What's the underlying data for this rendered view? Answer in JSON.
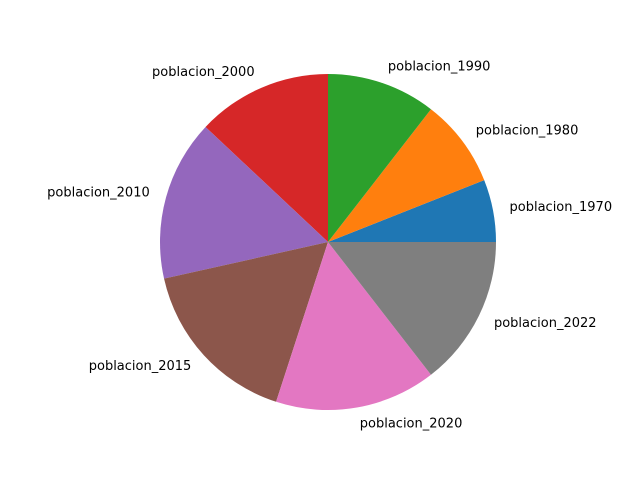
{
  "chart_data": {
    "type": "pie",
    "title": "",
    "labels": [
      "poblacion_1970",
      "poblacion_1980",
      "poblacion_1990",
      "poblacion_2000",
      "poblacion_2010",
      "poblacion_2015",
      "poblacion_2020",
      "poblacion_2022"
    ],
    "values": [
      6.0,
      8.5,
      10.5,
      13.0,
      15.5,
      16.5,
      15.5,
      14.5
    ],
    "colors": [
      "#1f77b4",
      "#ff7f0e",
      "#2ca02c",
      "#d62728",
      "#9467bd",
      "#8c564b",
      "#e377c2",
      "#7f7f7f"
    ],
    "start_angle_deg": 0,
    "direction": "counterclockwise",
    "legend": "none"
  }
}
